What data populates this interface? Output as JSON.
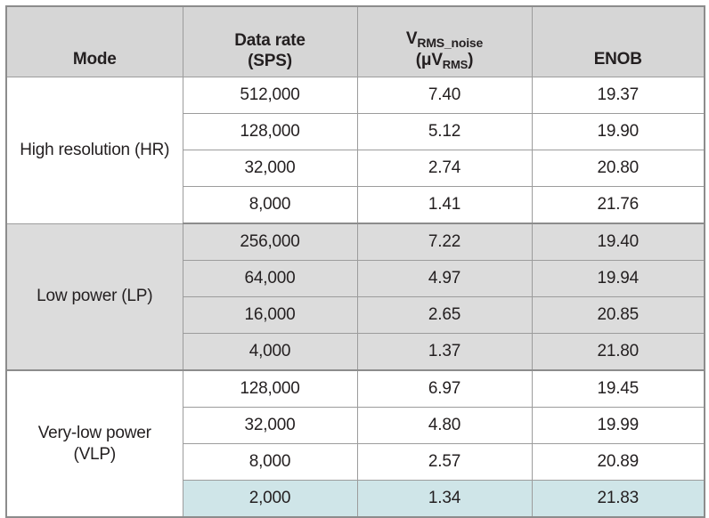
{
  "table": {
    "headers": {
      "mode": "Mode",
      "data_rate_line1": "Data rate",
      "data_rate_line2": "(SPS)",
      "vrms_main": "V",
      "vrms_sub": "RMS_noise",
      "vrms_unit_open": "(μV",
      "vrms_unit_sub": "RMS",
      "vrms_unit_close": ")",
      "enob": "ENOB"
    },
    "groups": [
      {
        "mode": "High resolution (HR)",
        "rows": [
          {
            "rate": "512,000",
            "noise": "7.40",
            "enob": "19.37"
          },
          {
            "rate": "128,000",
            "noise": "5.12",
            "enob": "19.90"
          },
          {
            "rate": "32,000",
            "noise": "2.74",
            "enob": "20.80"
          },
          {
            "rate": "8,000",
            "noise": "1.41",
            "enob": "21.76"
          }
        ]
      },
      {
        "mode": "Low power (LP)",
        "rows": [
          {
            "rate": "256,000",
            "noise": "7.22",
            "enob": "19.40"
          },
          {
            "rate": "64,000",
            "noise": "4.97",
            "enob": "19.94"
          },
          {
            "rate": "16,000",
            "noise": "2.65",
            "enob": "20.85"
          },
          {
            "rate": "4,000",
            "noise": "1.37",
            "enob": "21.80"
          }
        ]
      },
      {
        "mode_line1": "Very-low power",
        "mode_line2": "(VLP)",
        "rows": [
          {
            "rate": "128,000",
            "noise": "6.97",
            "enob": "19.45"
          },
          {
            "rate": "32,000",
            "noise": "4.80",
            "enob": "19.99"
          },
          {
            "rate": "8,000",
            "noise": "2.57",
            "enob": "20.89"
          },
          {
            "rate": "2,000",
            "noise": "1.34",
            "enob": "21.83"
          }
        ]
      }
    ],
    "colors": {
      "header_bg": "#d6d6d6",
      "lp_group_bg": "#dcdcdc",
      "highlight_bg": "#cfe5e8",
      "border": "#9c9c9c"
    }
  }
}
